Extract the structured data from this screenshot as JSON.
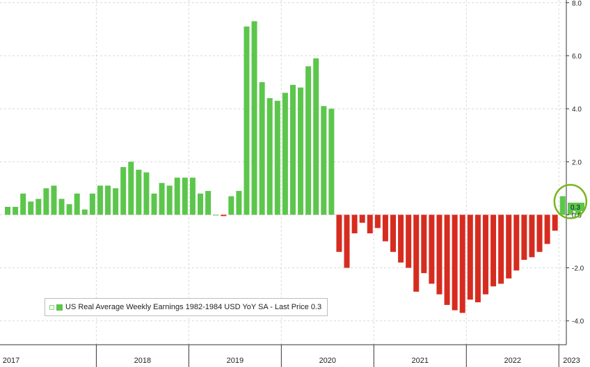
{
  "chart_data": {
    "type": "bar",
    "title": "",
    "xlabel": "",
    "ylabel": "",
    "series": [
      {
        "name": "US Real Average Weekly Earnings 1982-1984 USD YoY SA - Last Price 0.3",
        "x": [
          "2017-01",
          "2017-02",
          "2017-03",
          "2017-04",
          "2017-05",
          "2017-06",
          "2017-07",
          "2017-08",
          "2017-09",
          "2017-10",
          "2017-11",
          "2017-12",
          "2018-01",
          "2018-02",
          "2018-03",
          "2018-04",
          "2018-05",
          "2018-06",
          "2018-07",
          "2018-08",
          "2018-09",
          "2018-10",
          "2018-11",
          "2018-12",
          "2019-01",
          "2019-02",
          "2019-03",
          "2019-04",
          "2019-05",
          "2019-06",
          "2019-07",
          "2019-08",
          "2019-09",
          "2019-10",
          "2019-11",
          "2019-12",
          "2020-01",
          "2020-02",
          "2020-03",
          "2020-04",
          "2020-05",
          "2020-06",
          "2020-07",
          "2020-08",
          "2020-09",
          "2020-10",
          "2020-11",
          "2020-12",
          "2021-01",
          "2021-02",
          "2021-03",
          "2021-04",
          "2021-05",
          "2021-06",
          "2021-07",
          "2021-08",
          "2021-09",
          "2021-10",
          "2021-11",
          "2021-12",
          "2022-01",
          "2022-02",
          "2022-03",
          "2022-04",
          "2022-05",
          "2022-06",
          "2022-07",
          "2022-08",
          "2022-09",
          "2022-10",
          "2022-11",
          "2022-12",
          "2023-01",
          "2023-02",
          "2023-03"
        ],
        "values": [
          0.3,
          0.3,
          0.8,
          0.5,
          0.6,
          1.0,
          1.1,
          0.6,
          0.4,
          0.8,
          0.2,
          0.8,
          1.1,
          1.1,
          1.0,
          1.8,
          2.0,
          1.7,
          1.6,
          0.8,
          1.2,
          1.1,
          1.4,
          1.4,
          1.4,
          0.8,
          0.9,
          0.0,
          -0.05,
          0.7,
          0.9,
          7.1,
          7.3,
          5.0,
          4.4,
          4.3,
          4.6,
          4.9,
          4.8,
          5.6,
          5.9,
          4.1,
          4.0,
          -1.4,
          -2.0,
          -0.7,
          -0.3,
          -0.7,
          -0.5,
          -1.0,
          -1.4,
          -1.8,
          -2.0,
          -2.9,
          -2.2,
          -2.6,
          -3.0,
          -3.4,
          -3.6,
          -3.7,
          -3.2,
          -3.3,
          -3.0,
          -2.7,
          -2.6,
          -2.4,
          -2.1,
          -1.7,
          -1.6,
          -1.4,
          -1.1,
          -0.6,
          0.7,
          0.2,
          0.3
        ]
      }
    ],
    "ylim": [
      -4.9,
      8.1
    ],
    "yticks": [
      "8.0",
      "6.0",
      "4.0",
      "2.0",
      "0.0",
      "-2.0",
      "-4.0"
    ],
    "ytick_values": [
      8,
      6,
      4,
      2,
      0,
      -2,
      -4
    ],
    "year_labels": [
      "2017",
      "2018",
      "2019",
      "2020",
      "2021",
      "2022",
      "2023"
    ],
    "last_price_label": "0.3",
    "last_value": 0.3,
    "grid": true,
    "legend_position": "bottom-left",
    "highlight": "circle around the last three bars",
    "colors": {
      "positive": "#5cc64c",
      "negative": "#d62c20",
      "grid": "#d8d8d8",
      "last_price_tag": "#5cc64c",
      "highlight_circle": "#7ab51d"
    }
  },
  "legend": {
    "text": "US Real Average Weekly Earnings 1982-1984 USD YoY SA - Last Price 0.3"
  }
}
